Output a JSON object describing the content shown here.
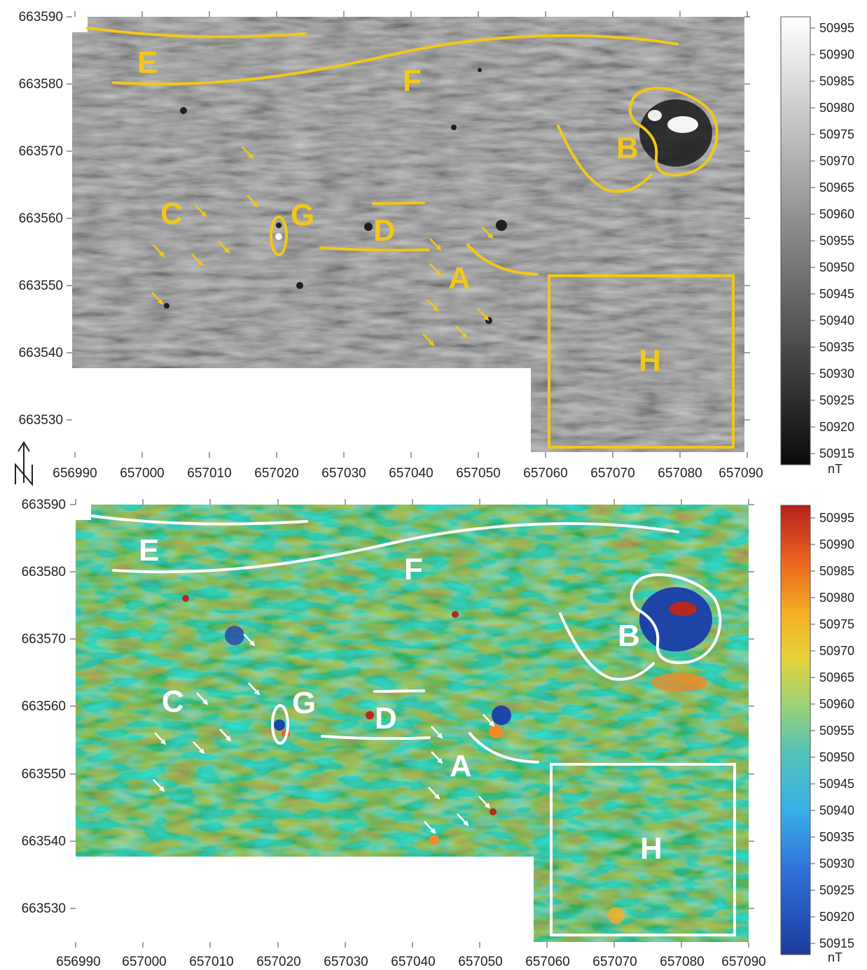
{
  "figure": {
    "panels": [
      {
        "id": "grayscale",
        "colormap": "gray",
        "annotation_color": "#f2c81a"
      },
      {
        "id": "rainbow",
        "colormap": "rainbow",
        "annotation_color": "#ffffff"
      }
    ],
    "x_ticks": [
      "656990",
      "657000",
      "657010",
      "657020",
      "657030",
      "657040",
      "657050",
      "657060",
      "657070",
      "657080",
      "657090"
    ],
    "y_ticks": [
      "663590",
      "663580",
      "663570",
      "663560",
      "663550",
      "663540",
      "663530"
    ],
    "colorbar_ticks": [
      "50995",
      "50990",
      "50985",
      "50980",
      "50975",
      "50970",
      "50965",
      "50960",
      "50955",
      "50950",
      "50945",
      "50940",
      "50935",
      "50930",
      "50925",
      "50920",
      "50915"
    ],
    "colorbar_unit": "nT",
    "north_label": "N",
    "anomaly_labels": [
      "E",
      "F",
      "B",
      "C",
      "G",
      "D",
      "A",
      "H"
    ],
    "colors": {
      "yellow": "#f2c81a",
      "white": "#ffffff",
      "gray_bg": "#7f7f7f",
      "rainbow_bg": "#5bbf9f"
    }
  }
}
